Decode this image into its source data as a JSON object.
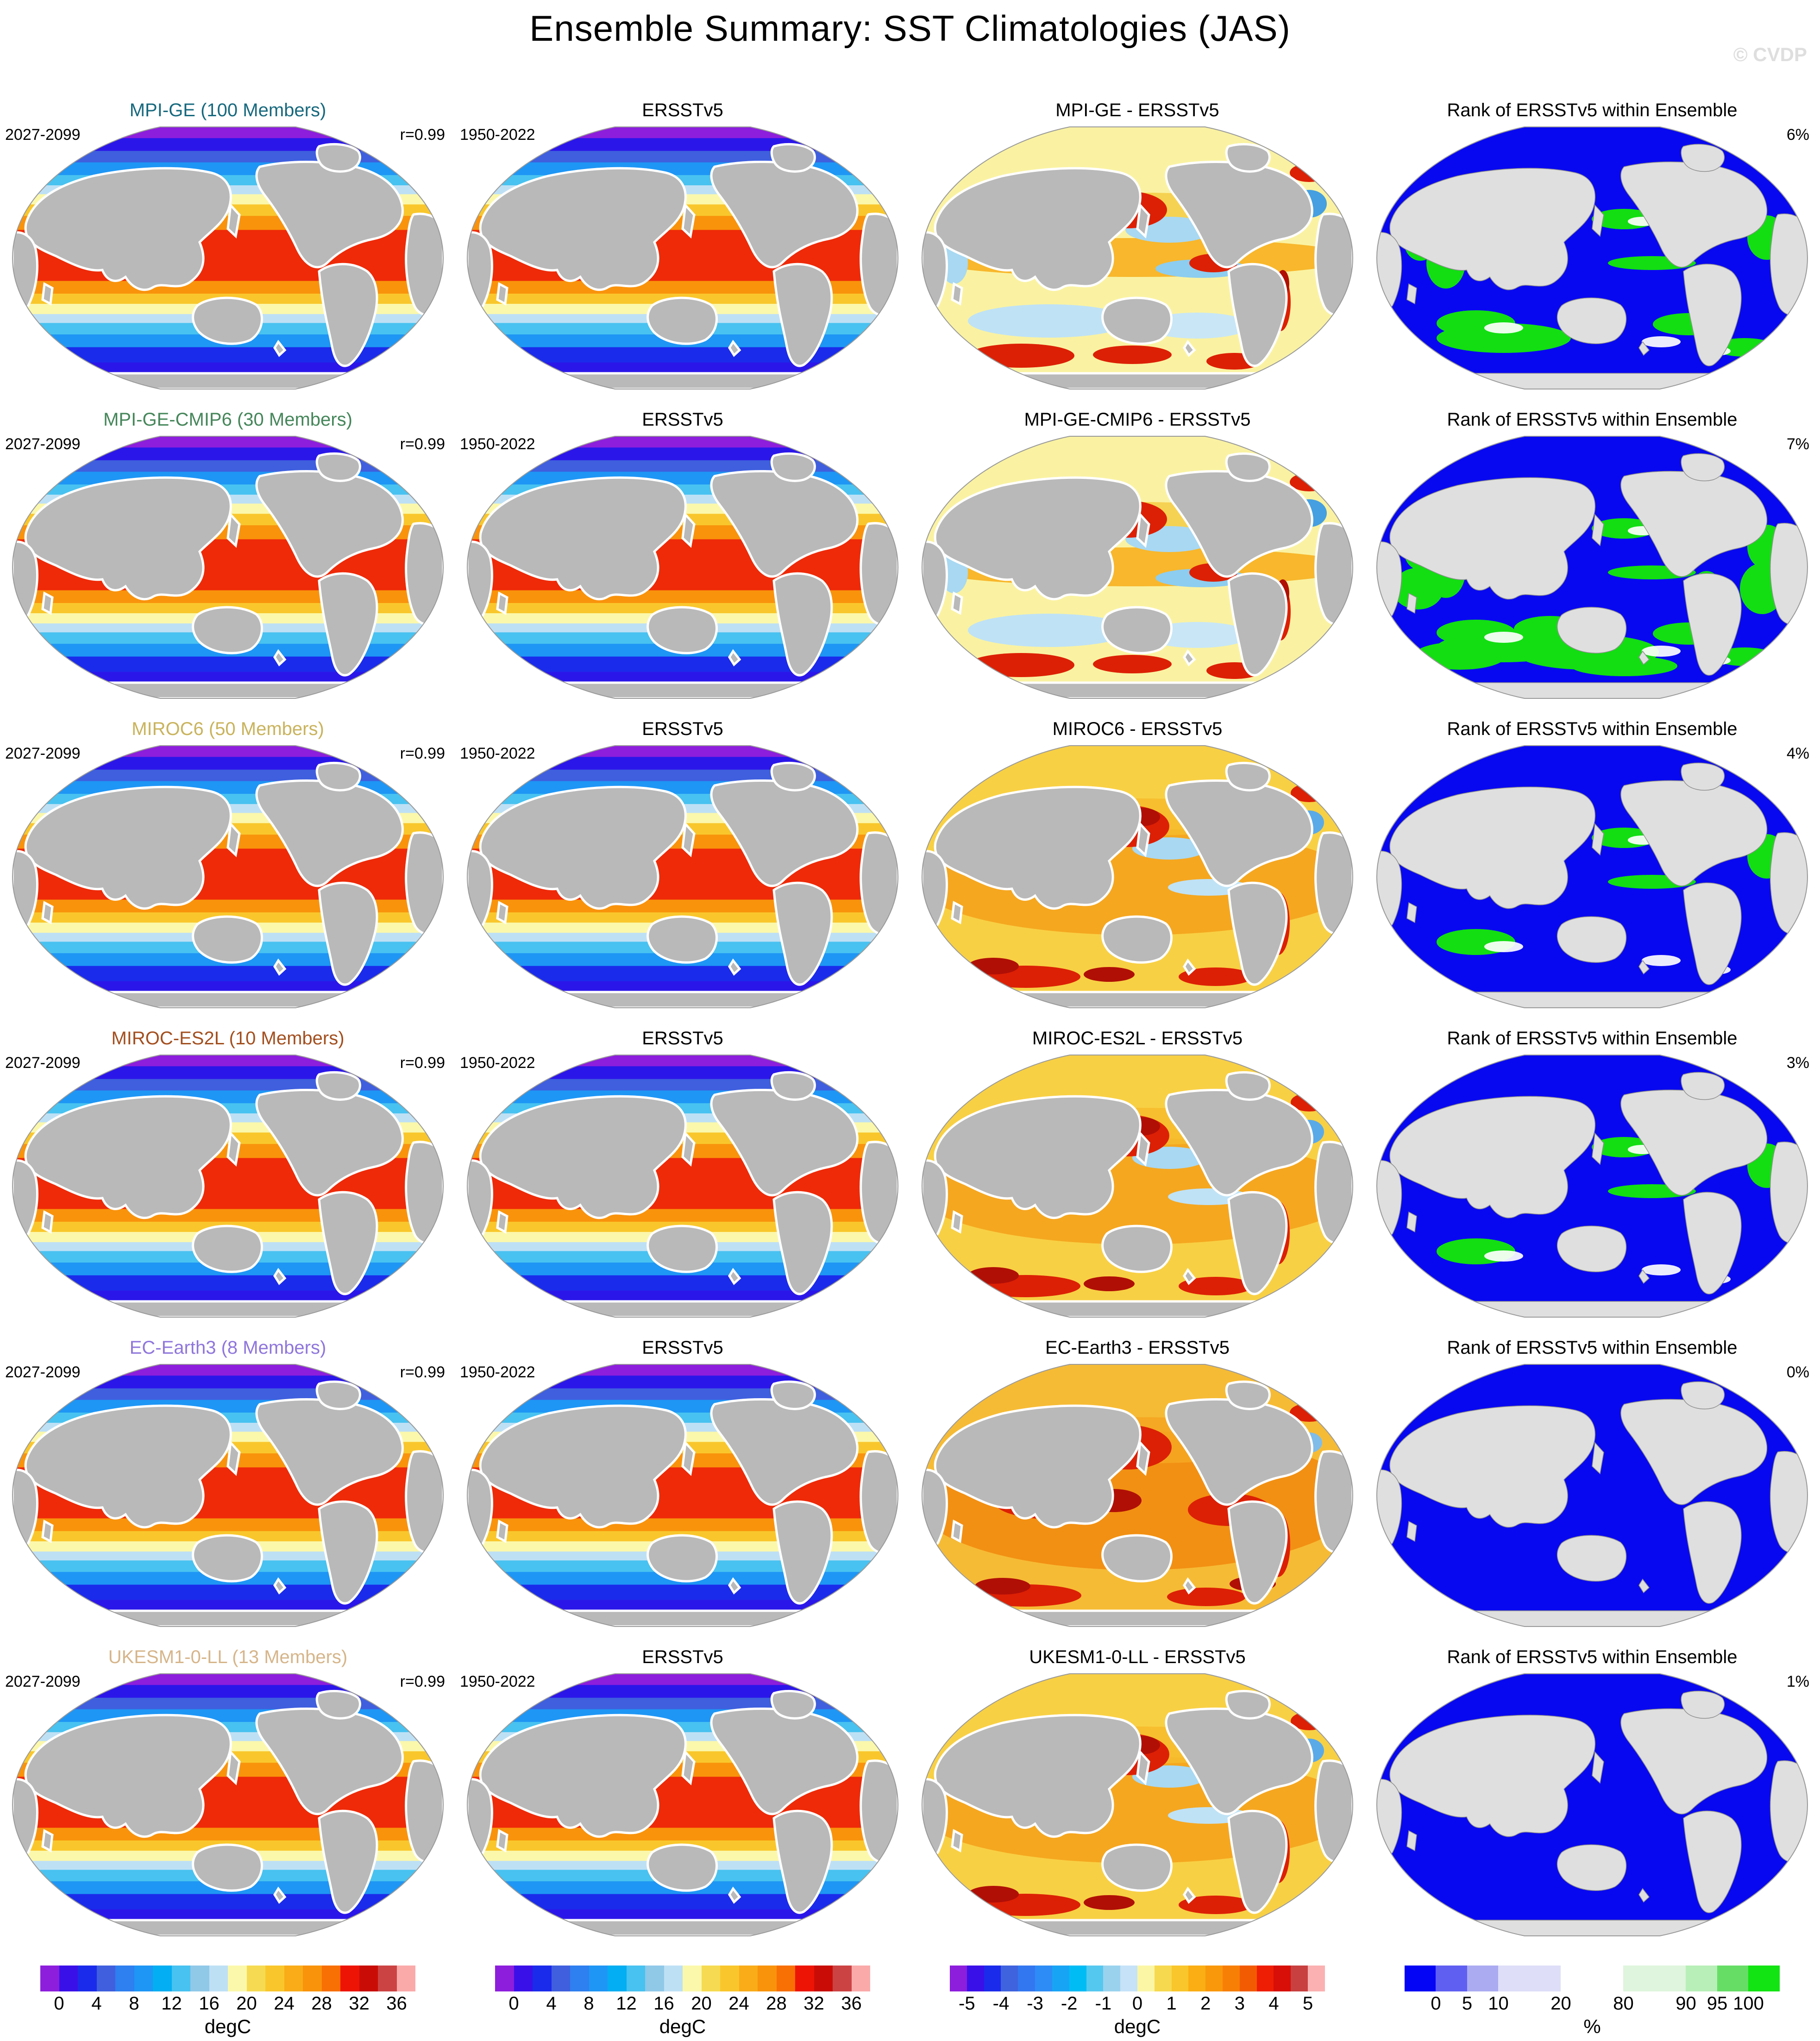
{
  "title": "Ensemble Summary: SST Climatologies (JAS)",
  "watermark": "© CVDP",
  "columns": {
    "obs_title": "ERSSTv5",
    "rank_title": "Rank of ERSSTv5 within Ensemble"
  },
  "rows": [
    {
      "model_title": "MPI-GE (100 Members)",
      "title_color": "#17697E",
      "period": "2027-2099",
      "r_label": "r=0.99",
      "obs_period": "1950-2022",
      "diff_title": "MPI-GE - ERSSTv5",
      "rank_pct": "6%",
      "diff_style": "mild",
      "rank_level": 2
    },
    {
      "model_title": "MPI-GE-CMIP6 (30 Members)",
      "title_color": "#45865A",
      "period": "2027-2099",
      "r_label": "r=0.99",
      "obs_period": "1950-2022",
      "diff_title": "MPI-GE-CMIP6 - ERSSTv5",
      "rank_pct": "7%",
      "diff_style": "mild",
      "rank_level": 3
    },
    {
      "model_title": "MIROC6 (50 Members)",
      "title_color": "#C9B35C",
      "period": "2027-2099",
      "r_label": "r=0.99",
      "obs_period": "1950-2022",
      "diff_title": "MIROC6 - ERSSTv5",
      "rank_pct": "4%",
      "diff_style": "warm",
      "rank_level": 1
    },
    {
      "model_title": "MIROC-ES2L (10 Members)",
      "title_color": "#A34F1F",
      "period": "2027-2099",
      "r_label": "r=0.99",
      "obs_period": "1950-2022",
      "diff_title": "MIROC-ES2L - ERSSTv5",
      "rank_pct": "3%",
      "diff_style": "warm",
      "rank_level": 1
    },
    {
      "model_title": "EC-Earth3 (8 Members)",
      "title_color": "#8F76DC",
      "period": "2027-2099",
      "r_label": "r=0.99",
      "obs_period": "1950-2022",
      "diff_title": "EC-Earth3 - ERSSTv5",
      "rank_pct": "0%",
      "diff_style": "hot",
      "rank_level": 0
    },
    {
      "model_title": "UKESM1-0-LL (13 Members)",
      "title_color": "#D6B58A",
      "period": "2027-2099",
      "r_label": "r=0.99",
      "obs_period": "1950-2022",
      "diff_title": "UKESM1-0-LL - ERSSTv5",
      "rank_pct": "1%",
      "diff_style": "warm",
      "rank_level": 0
    }
  ],
  "colorbars": {
    "layout": [
      "sst",
      "sst",
      "diff",
      "rank"
    ],
    "sst": {
      "ticks": [
        "0",
        "4",
        "8",
        "12",
        "16",
        "20",
        "24",
        "28",
        "32",
        "36"
      ],
      "unit": "degC",
      "colors": [
        "#8D1EDC",
        "#3A10E8",
        "#1B2BEB",
        "#3F5FDE",
        "#2E7FF0",
        "#1E96F5",
        "#04AEF2",
        "#48C2F0",
        "#90C8E8",
        "#BEE0F5",
        "#FBF8AC",
        "#F6DB52",
        "#F9C72C",
        "#F9AC18",
        "#F9930C",
        "#F86F04",
        "#EE1405",
        "#C90D06",
        "#CC4343",
        "#FBAAAA"
      ]
    },
    "diff": {
      "ticks": [
        "-5",
        "-4",
        "-3",
        "-2",
        "-1",
        "0",
        "1",
        "2",
        "3",
        "4",
        "5"
      ],
      "unit": "degC",
      "colors": [
        "#8D1EDC",
        "#3A10E8",
        "#1B2BEB",
        "#3F62DE",
        "#3377F0",
        "#2D8CF5",
        "#18A4F5",
        "#00BCF5",
        "#55C8F0",
        "#9AD2EE",
        "#C6E2F8",
        "#FBF6A6",
        "#F7D94F",
        "#F9C62B",
        "#FAAE14",
        "#F9980B",
        "#F87F05",
        "#F35B02",
        "#EE1E05",
        "#D80F08",
        "#C84040",
        "#FBB1B1"
      ]
    },
    "rank": {
      "ticks": [
        "0",
        "5",
        "10",
        "20",
        "80",
        "90",
        "95",
        "100"
      ],
      "unit": "%",
      "weights": [
        1,
        1,
        1,
        2,
        2,
        2,
        1,
        1,
        1
      ],
      "colors": [
        "#0505F5",
        "#5F5FF2",
        "#ABABF2",
        "#DEDEF8",
        "#FFFFFF",
        "#DFF5DD",
        "#B8EFB8",
        "#66DE66",
        "#12E312"
      ]
    }
  },
  "map_palette": {
    "outline": "#9A9A9A",
    "land": "#B9B9B9",
    "rank_land": "#DFDFDF",
    "rank_land_outline": "#8F8F8F",
    "rank_ocean": "#0808F0",
    "rank_green": "#12DE12",
    "sst_bands": [
      [
        "#8D1EDC",
        5.5
      ],
      [
        "#2B16E9",
        5.0
      ],
      [
        "#3F5FDE",
        4.5
      ],
      [
        "#1E96F5",
        5.0
      ],
      [
        "#48C2F0",
        4.0
      ],
      [
        "#BEE0F5",
        3.5
      ],
      [
        "#FBF8AC",
        4.0
      ],
      [
        "#F9C72C",
        4.5
      ],
      [
        "#F9930C",
        5.5
      ],
      [
        "#EE2A08",
        20.0
      ],
      [
        "#F9930C",
        5.0
      ],
      [
        "#F9C72C",
        4.0
      ],
      [
        "#FBF8AC",
        4.0
      ],
      [
        "#BEE0F5",
        3.5
      ],
      [
        "#48C2F0",
        4.5
      ],
      [
        "#1E96F5",
        5.0
      ],
      [
        "#1B2BEB",
        6.0
      ],
      [
        "#2B16E9",
        4.5
      ],
      [
        "#8D1EDC",
        7.0
      ]
    ],
    "diff_styles": {
      "mild": {
        "base": "#FAF2A2"
      },
      "warm": {
        "base": "#F8D044"
      },
      "hot": {
        "base": "#F6BB35"
      }
    }
  }
}
